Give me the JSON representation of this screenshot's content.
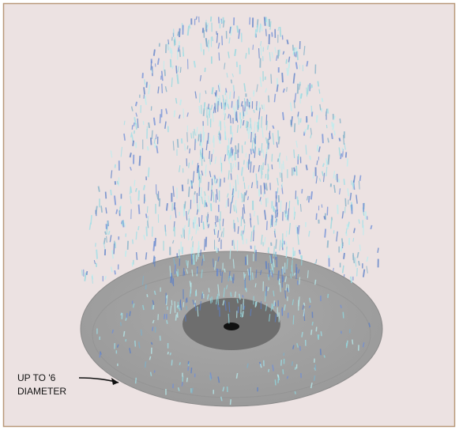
{
  "callout": {
    "line1": "UP TO '6",
    "line2": "DIAMETER"
  }
}
